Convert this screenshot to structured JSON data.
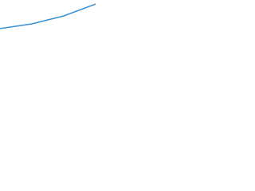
{
  "chart_data": {
    "type": "line",
    "categories": [
      null,
      null,
      null,
      null
    ],
    "series": [
      {
        "color": "#3a8fd0",
        "values": [
          0.5,
          3.3,
          8,
          15
        ]
      }
    ],
    "ylim": [
      0,
      16
    ]
  }
}
